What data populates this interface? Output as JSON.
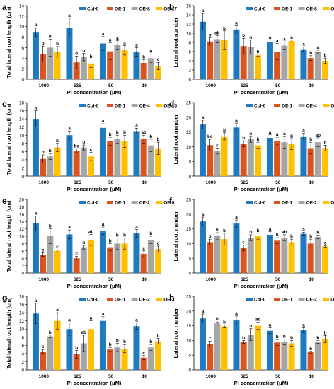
{
  "colors": {
    "s0": "#1f7bc1",
    "s1": "#d9541e",
    "s2": "#a6a6a6",
    "s3": "#ffc000"
  },
  "chart_data": [
    {
      "panel": "a",
      "type": "bar",
      "ylabel": "Total lateral root length (cm)",
      "xlabel": "Pi concentration (μM)",
      "categories": [
        "1000",
        "625",
        "50",
        "10"
      ],
      "ylim": [
        0,
        14
      ],
      "yticks": [
        0,
        2,
        4,
        6,
        8,
        10,
        12,
        14
      ],
      "series": [
        {
          "name": "Col-0",
          "values": [
            9.0,
            9.8,
            6.8,
            5.2
          ],
          "errors": [
            0.8,
            1.8,
            1.3,
            0.8
          ],
          "letters": [
            "a",
            "a",
            "a",
            "a"
          ]
        },
        {
          "name": "OE-1",
          "values": [
            4.8,
            3.2,
            5.3,
            3.1
          ],
          "errors": [
            1.5,
            1.2,
            1.6,
            0.6
          ],
          "letters": [
            "b",
            "b",
            "a",
            "b"
          ]
        },
        {
          "name": "OE-8",
          "values": [
            6.0,
            4.2,
            6.5,
            4.0
          ],
          "errors": [
            1.6,
            0.7,
            0.8,
            0.8
          ],
          "letters": [
            "b",
            "b",
            "a",
            "b"
          ]
        },
        {
          "name": "OE-17",
          "values": [
            5.2,
            3.0,
            5.5,
            2.5
          ],
          "errors": [
            1.0,
            0.8,
            0.9,
            0.7
          ],
          "letters": [
            "b",
            "b",
            "a",
            "c"
          ]
        }
      ]
    },
    {
      "panel": "b",
      "type": "bar",
      "ylabel": "Lateral root number",
      "xlabel": "Pi concentration (μM)",
      "categories": [
        "1000",
        "625",
        "50",
        "10"
      ],
      "ylim": [
        0,
        16
      ],
      "yticks": [
        0,
        2,
        4,
        6,
        8,
        10,
        12,
        14,
        16
      ],
      "series": [
        {
          "name": "Col-0",
          "values": [
            12.5,
            10.8,
            8.0,
            6.5
          ],
          "errors": [
            1.8,
            0.8,
            0.5,
            0.5
          ],
          "letters": [
            "a",
            "a",
            "a",
            "a"
          ]
        },
        {
          "name": "OE-1",
          "values": [
            8.2,
            7.2,
            6.0,
            4.6
          ],
          "errors": [
            0.8,
            1.7,
            1.8,
            0.5
          ],
          "letters": [
            "b",
            "b",
            "a",
            "b"
          ]
        },
        {
          "name": "OE-8",
          "values": [
            8.7,
            7.0,
            7.3,
            6.0
          ],
          "errors": [
            0.8,
            1.5,
            0.8,
            0.3
          ],
          "letters": [
            "ab",
            "b",
            "a",
            "a"
          ]
        },
        {
          "name": "OE-17",
          "values": [
            8.5,
            5.2,
            8.3,
            4.0
          ],
          "errors": [
            2.0,
            0.2,
            0.2,
            0.6
          ],
          "letters": [
            "b",
            "b",
            "a",
            "b"
          ]
        }
      ]
    },
    {
      "panel": "c",
      "type": "bar",
      "ylabel": "Total lateral root length (cm)",
      "xlabel": "Pi concentration (μM)",
      "categories": [
        "1000",
        "625",
        "50",
        "10"
      ],
      "ylim": [
        0,
        18
      ],
      "yticks": [
        0,
        2,
        4,
        6,
        8,
        10,
        12,
        14,
        16,
        18
      ],
      "series": [
        {
          "name": "Col-0",
          "values": [
            14.0,
            10.0,
            11.8,
            11.0
          ],
          "errors": [
            2.0,
            1.0,
            1.0,
            0.7
          ],
          "letters": [
            "a",
            "a",
            "a",
            "a"
          ]
        },
        {
          "name": "OE-1",
          "values": [
            4.2,
            6.2,
            8.5,
            9.0
          ],
          "errors": [
            1.0,
            0.5,
            1.0,
            1.0
          ],
          "letters": [
            "b",
            "bc",
            "b",
            "ab"
          ]
        },
        {
          "name": "OE-4",
          "values": [
            4.8,
            7.0,
            9.0,
            7.5
          ],
          "errors": [
            0.7,
            0.6,
            1.0,
            1.5
          ],
          "letters": [
            "b",
            "b",
            "b",
            "b"
          ]
        },
        {
          "name": "OE-15",
          "values": [
            7.0,
            4.8,
            8.5,
            6.8
          ],
          "errors": [
            1.0,
            1.0,
            1.5,
            1.5
          ],
          "letters": [
            "b",
            "c",
            "b",
            "b"
          ]
        }
      ]
    },
    {
      "panel": "d",
      "type": "bar",
      "ylabel": "Lateral root number",
      "xlabel": "Pi concentration (μM)",
      "categories": [
        "1000",
        "625",
        "50",
        "10"
      ],
      "ylim": [
        0,
        25
      ],
      "yticks": [
        0,
        5,
        10,
        15,
        20,
        25
      ],
      "series": [
        {
          "name": "Col-0",
          "values": [
            17.5,
            16.5,
            13.0,
            13.5
          ],
          "errors": [
            1.5,
            1.5,
            1.0,
            1.0
          ],
          "letters": [
            "a",
            "a",
            "a",
            "a"
          ]
        },
        {
          "name": "OE-1",
          "values": [
            10.5,
            11.0,
            12.0,
            9.5
          ],
          "errors": [
            2.0,
            1.0,
            1.2,
            2.0
          ],
          "letters": [
            "bc",
            "b",
            "a",
            "b"
          ]
        },
        {
          "name": "OE-4",
          "values": [
            8.5,
            12.5,
            11.5,
            11.5
          ],
          "errors": [
            1.0,
            1.0,
            2.0,
            1.5
          ],
          "letters": [
            "c",
            "b",
            "a",
            "ab"
          ]
        },
        {
          "name": "OE-15",
          "values": [
            13.5,
            10.5,
            11.0,
            9.5
          ],
          "errors": [
            1.2,
            1.0,
            2.0,
            1.0
          ],
          "letters": [
            "b",
            "b",
            "a",
            "b"
          ]
        }
      ]
    },
    {
      "panel": "e",
      "type": "bar",
      "ylabel": "Total lateral root length (cm)",
      "xlabel": "Pi concentration (μM)",
      "categories": [
        "1000",
        "625",
        "50",
        "10"
      ],
      "ylim": [
        0,
        20
      ],
      "yticks": [
        0,
        2,
        4,
        6,
        8,
        10,
        12,
        14,
        16,
        18,
        20
      ],
      "series": [
        {
          "name": "Col-0",
          "values": [
            13.5,
            10.5,
            11.5,
            10.8
          ],
          "errors": [
            2.0,
            1.2,
            1.0,
            1.0
          ],
          "letters": [
            "a",
            "a",
            "a",
            "a"
          ]
        },
        {
          "name": "OE-1",
          "values": [
            5.0,
            4.0,
            7.0,
            5.2
          ],
          "errors": [
            0.5,
            0.5,
            1.0,
            0.8
          ],
          "letters": [
            "c",
            "c",
            "b",
            "c"
          ]
        },
        {
          "name": "OE-2",
          "values": [
            10.0,
            7.0,
            8.0,
            9.0
          ],
          "errors": [
            2.0,
            0.5,
            1.5,
            1.0
          ],
          "letters": [
            "b",
            "b",
            "b",
            "b"
          ]
        },
        {
          "name": "OE-5",
          "values": [
            6.0,
            9.0,
            8.0,
            6.5
          ],
          "errors": [
            0.3,
            1.5,
            1.5,
            0.8
          ],
          "letters": [
            "c",
            "ab",
            "b",
            "c"
          ]
        }
      ]
    },
    {
      "panel": "f",
      "type": "bar",
      "ylabel": "Lateral root number",
      "xlabel": "Pi concentration (μM)",
      "categories": [
        "1000",
        "625",
        "50",
        "10"
      ],
      "ylim": [
        0,
        25
      ],
      "yticks": [
        0,
        5,
        10,
        15,
        20,
        25
      ],
      "series": [
        {
          "name": "Col-0",
          "values": [
            17.5,
            16.8,
            13.0,
            13.3
          ],
          "errors": [
            1.5,
            1.2,
            1.0,
            0.5
          ],
          "letters": [
            "a",
            "a",
            "a",
            "a"
          ]
        },
        {
          "name": "OE-1",
          "values": [
            10.5,
            8.5,
            11.0,
            10.0
          ],
          "errors": [
            1.0,
            1.0,
            1.0,
            1.5
          ],
          "letters": [
            "b",
            "c",
            "b",
            "b"
          ]
        },
        {
          "name": "OE-2",
          "values": [
            12.5,
            12.0,
            12.0,
            12.3
          ],
          "errors": [
            1.2,
            1.0,
            1.0,
            0.6
          ],
          "letters": [
            "b",
            "b",
            "ab",
            "b"
          ]
        },
        {
          "name": "OE-5",
          "values": [
            11.5,
            12.5,
            10.5,
            9.0
          ],
          "errors": [
            2.0,
            1.0,
            1.0,
            0.2
          ],
          "letters": [
            "b",
            "b",
            "b",
            "c"
          ]
        }
      ]
    },
    {
      "panel": "g",
      "type": "bar",
      "ylabel": "Total lateral root length (cm)",
      "xlabel": "Pi concentration (μM)",
      "categories": [
        "1000",
        "625",
        "50",
        "10"
      ],
      "ylim": [
        0,
        18
      ],
      "yticks": [
        0,
        2,
        4,
        6,
        8,
        10,
        12,
        14,
        16,
        18
      ],
      "series": [
        {
          "name": "Col-0",
          "values": [
            13.8,
            10.0,
            12.0,
            10.7
          ],
          "errors": [
            2.5,
            1.5,
            1.0,
            0.8
          ],
          "letters": [
            "a",
            "a",
            "a",
            "a"
          ]
        },
        {
          "name": "OE-1",
          "values": [
            4.5,
            3.8,
            5.0,
            3.0
          ],
          "errors": [
            0.5,
            1.0,
            0.5,
            0.5
          ],
          "letters": [
            "c",
            "b",
            "b",
            "c"
          ]
        },
        {
          "name": "OE-2",
          "values": [
            8.2,
            6.5,
            5.5,
            5.5
          ],
          "errors": [
            0.3,
            2.0,
            1.0,
            0.7
          ],
          "letters": [
            "b",
            "ab",
            "b",
            "b"
          ]
        },
        {
          "name": "OE-3",
          "values": [
            12.0,
            10.0,
            5.2,
            7.0
          ],
          "errors": [
            2.0,
            2.0,
            1.0,
            0.7
          ],
          "letters": [
            "a",
            "a",
            "b",
            "b"
          ]
        }
      ]
    },
    {
      "panel": "h",
      "type": "bar",
      "ylabel": "Lateral root number",
      "xlabel": "Pi concentration (μM)",
      "categories": [
        "1000",
        "625",
        "50",
        "10"
      ],
      "ylim": [
        0,
        25
      ],
      "yticks": [
        0,
        5,
        10,
        15,
        20,
        25
      ],
      "series": [
        {
          "name": "Col-0",
          "values": [
            17.5,
            16.8,
            13.3,
            13.5
          ],
          "errors": [
            1.5,
            1.5,
            1.0,
            0.8
          ],
          "letters": [
            "a",
            "a",
            "a",
            "a"
          ]
        },
        {
          "name": "OE-1",
          "values": [
            8.8,
            9.5,
            9.3,
            6.0
          ],
          "errors": [
            1.0,
            0.5,
            1.0,
            0.3
          ],
          "letters": [
            "c",
            "b",
            "b",
            "b"
          ]
        },
        {
          "name": "OE-2",
          "values": [
            15.8,
            12.0,
            9.5,
            9.5
          ],
          "errors": [
            0.5,
            2.0,
            1.0,
            0.5
          ],
          "letters": [
            "b",
            "b",
            "b",
            "b"
          ]
        },
        {
          "name": "OE-3",
          "values": [
            14.8,
            15.0,
            9.0,
            10.5
          ],
          "errors": [
            0.5,
            1.2,
            1.0,
            1.2
          ],
          "letters": [
            "b",
            "ab",
            "b",
            "b"
          ]
        }
      ]
    }
  ]
}
